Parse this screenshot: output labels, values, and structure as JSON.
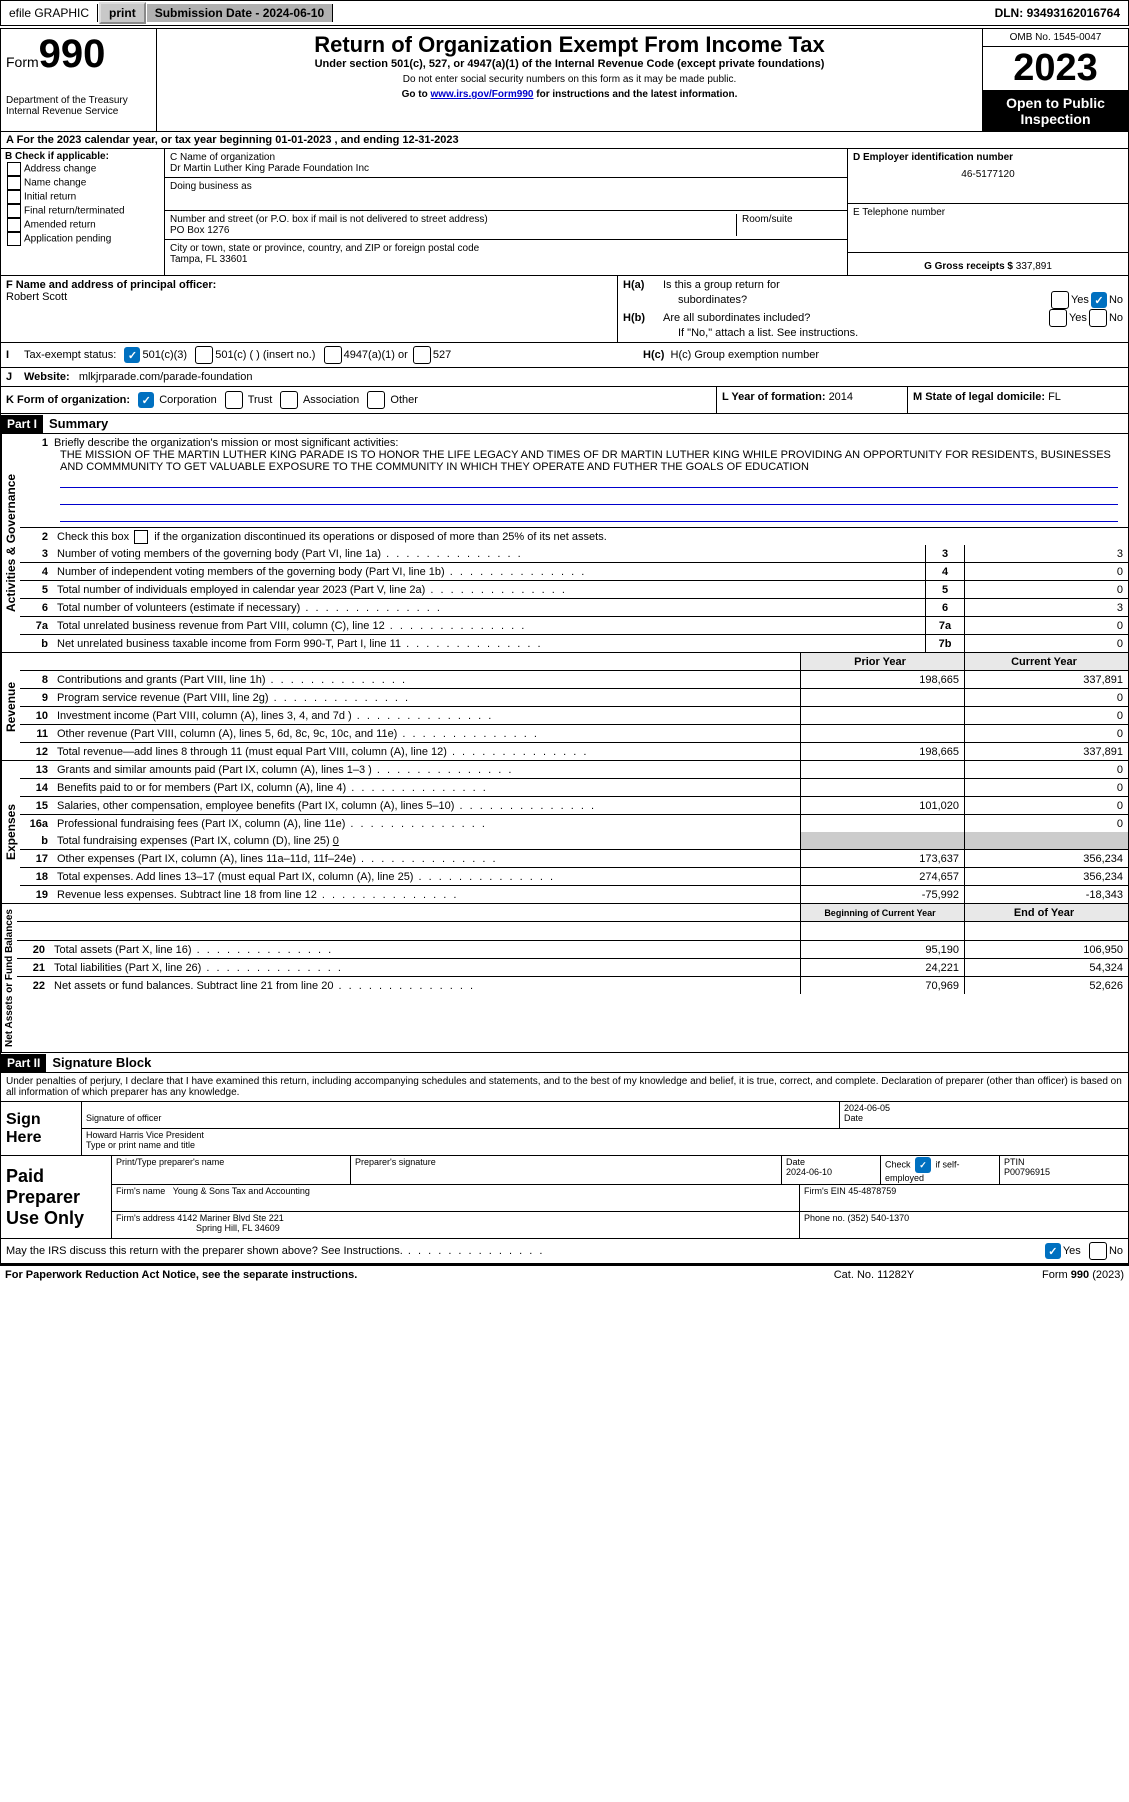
{
  "topbar": {
    "efile_label": "efile GRAPHIC",
    "print_btn": "print",
    "submission_label": "Submission Date - ",
    "submission_date": "2024-06-10",
    "dln_label": "DLN: ",
    "dln": "93493162016764"
  },
  "header": {
    "form_label": "Form",
    "form_number": "990",
    "dept": "Department of the Treasury",
    "irs": "Internal Revenue Service",
    "title": "Return of Organization Exempt From Income Tax",
    "sub1": "Under section 501(c), 527, or 4947(a)(1) of the Internal Revenue Code (except private foundations)",
    "sub2": "Do not enter social security numbers on this form as it may be made public.",
    "sub3_pre": "Go to ",
    "sub3_link": "www.irs.gov/Form990",
    "sub3_post": " for instructions and the latest information.",
    "omb_label": "OMB No. ",
    "omb": "1545-0047",
    "year": "2023",
    "open1": "Open to Public",
    "open2": "Inspection"
  },
  "row_a": {
    "text_pre": "A   For the 2023 calendar year, or tax year beginning ",
    "begin": "01-01-2023",
    "mid": "   , and ending ",
    "end": "12-31-2023"
  },
  "col_b": {
    "label": "B Check if applicable:",
    "items": [
      "Address change",
      "Name change",
      "Initial return",
      "Final return/terminated",
      "Amended return",
      "Application pending"
    ]
  },
  "col_c": {
    "name_label": "C Name of organization",
    "name": "Dr Martin Luther King Parade Foundation Inc",
    "dba_label": "Doing business as",
    "addr_label": "Number and street (or P.O. box if mail is not delivered to street address)",
    "addr": "PO Box 1276",
    "suite_label": "Room/suite",
    "city_label": "City or town, state or province, country, and ZIP or foreign postal code",
    "city": "Tampa, FL  33601"
  },
  "col_d": {
    "ein_label": "D Employer identification number",
    "ein": "46-5177120",
    "phone_label": "E Telephone number",
    "gross_label": "G Gross receipts $ ",
    "gross": "337,891"
  },
  "section_f": {
    "label": "F Name and address of principal officer:",
    "name": "Robert Scott"
  },
  "section_h": {
    "ha_label": "H(a)  Is this a group return for",
    "ha_label2": "subordinates?",
    "hb_label": "H(b)  Are all subordinates included?",
    "hb_note": "If \"No,\" attach a list. See instructions.",
    "hc_label": "H(c)  Group exemption number ",
    "yes": "Yes",
    "no": "No"
  },
  "section_i": {
    "label": "Tax-exempt status:",
    "opt1": "501(c)(3)",
    "opt2": "501(c) (  ) (insert no.)",
    "opt3": "4947(a)(1) or",
    "opt4": "527"
  },
  "section_j": {
    "label": "Website: ",
    "value": "mlkjrparade.com/parade-foundation"
  },
  "section_k": {
    "label": "K Form of organization:",
    "opts": [
      "Corporation",
      "Trust",
      "Association",
      "Other"
    ]
  },
  "section_l": {
    "label": "L Year of formation: ",
    "value": "2014"
  },
  "section_m": {
    "label": "M State of legal domicile: ",
    "value": "FL"
  },
  "parts": {
    "p1_label": "Part I",
    "p1_title": "Summary",
    "p2_label": "Part II",
    "p2_title": "Signature Block"
  },
  "vert_labels": {
    "gov": "Activities & Governance",
    "rev": "Revenue",
    "exp": "Expenses",
    "net": "Net Assets or Fund Balances"
  },
  "summary": {
    "q1_label": "Briefly describe the organization's mission or most significant activities:",
    "mission": "THE MISSION OF THE MARTIN LUTHER KING PARADE IS TO HONOR THE LIFE LEGACY AND TIMES OF DR MARTIN LUTHER KING WHILE PROVIDING AN OPPORTUNITY FOR RESIDENTS, BUSINESSES AND COMMMUNITY TO GET VALUABLE EXPOSURE TO THE COMMUNITY IN WHICH THEY OPERATE AND FUTHER THE GOALS OF EDUCATION",
    "q2_pre": "Check this box ",
    "q2_post": " if the organization discontinued its operations or disposed of more than 25% of its net assets.",
    "rows_gov": [
      {
        "n": "3",
        "t": "Number of voting members of the governing body (Part VI, line 1a)",
        "box": "3",
        "v": "3"
      },
      {
        "n": "4",
        "t": "Number of independent voting members of the governing body (Part VI, line 1b)",
        "box": "4",
        "v": "0"
      },
      {
        "n": "5",
        "t": "Total number of individuals employed in calendar year 2023 (Part V, line 2a)",
        "box": "5",
        "v": "0"
      },
      {
        "n": "6",
        "t": "Total number of volunteers (estimate if necessary)",
        "box": "6",
        "v": "3"
      },
      {
        "n": "7a",
        "t": "Total unrelated business revenue from Part VIII, column (C), line 12",
        "box": "7a",
        "v": "0"
      },
      {
        "n": "b",
        "t": "Net unrelated business taxable income from Form 990-T, Part I, line 11",
        "box": "7b",
        "v": "0"
      }
    ],
    "hdr_prior": "Prior Year",
    "hdr_curr": "Current Year",
    "rows_rev": [
      {
        "n": "8",
        "t": "Contributions and grants (Part VIII, line 1h)",
        "p": "198,665",
        "c": "337,891"
      },
      {
        "n": "9",
        "t": "Program service revenue (Part VIII, line 2g)",
        "p": "",
        "c": "0"
      },
      {
        "n": "10",
        "t": "Investment income (Part VIII, column (A), lines 3, 4, and 7d )",
        "p": "",
        "c": "0"
      },
      {
        "n": "11",
        "t": "Other revenue (Part VIII, column (A), lines 5, 6d, 8c, 9c, 10c, and 11e)",
        "p": "",
        "c": "0"
      },
      {
        "n": "12",
        "t": "Total revenue—add lines 8 through 11 (must equal Part VIII, column (A), line 12)",
        "p": "198,665",
        "c": "337,891"
      }
    ],
    "rows_exp": [
      {
        "n": "13",
        "t": "Grants and similar amounts paid (Part IX, column (A), lines 1–3 )",
        "p": "",
        "c": "0"
      },
      {
        "n": "14",
        "t": "Benefits paid to or for members (Part IX, column (A), line 4)",
        "p": "",
        "c": "0"
      },
      {
        "n": "15",
        "t": "Salaries, other compensation, employee benefits (Part IX, column (A), lines 5–10)",
        "p": "101,020",
        "c": "0"
      },
      {
        "n": "16a",
        "t": "Professional fundraising fees (Part IX, column (A), line 11e)",
        "p": "",
        "c": "0"
      }
    ],
    "row_16b_pre": "Total fundraising expenses (Part IX, column (D), line 25) ",
    "row_16b_val": "0",
    "rows_exp2": [
      {
        "n": "17",
        "t": "Other expenses (Part IX, column (A), lines 11a–11d, 11f–24e)",
        "p": "173,637",
        "c": "356,234"
      },
      {
        "n": "18",
        "t": "Total expenses. Add lines 13–17 (must equal Part IX, column (A), line 25)",
        "p": "274,657",
        "c": "356,234"
      },
      {
        "n": "19",
        "t": "Revenue less expenses. Subtract line 18 from line 12",
        "p": "-75,992",
        "c": "-18,343"
      }
    ],
    "hdr_begin": "Beginning of Current Year",
    "hdr_end": "End of Year",
    "rows_net": [
      {
        "n": "20",
        "t": "Total assets (Part X, line 16)",
        "p": "95,190",
        "c": "106,950"
      },
      {
        "n": "21",
        "t": "Total liabilities (Part X, line 26)",
        "p": "24,221",
        "c": "54,324"
      },
      {
        "n": "22",
        "t": "Net assets or fund balances. Subtract line 21 from line 20",
        "p": "70,969",
        "c": "52,626"
      }
    ]
  },
  "perjury": "Under penalties of perjury, I declare that I have examined this return, including accompanying schedules and statements, and to the best of my knowledge and belief, it is true, correct, and complete. Declaration of preparer (other than officer) is based on all information of which preparer has any knowledge.",
  "sign": {
    "label1": "Sign",
    "label2": "Here",
    "sig_officer": "Signature of officer",
    "date_label": "Date",
    "sig_date": "2024-06-05",
    "officer_name": "Howard Harris  Vice President",
    "type_label": "Type or print name and title"
  },
  "paid": {
    "label1": "Paid",
    "label2": "Preparer",
    "label3": "Use Only",
    "print_label": "Print/Type preparer's name",
    "sig_label": "Preparer's signature",
    "date_label": "Date",
    "date": "2024-06-10",
    "check_label": "Check",
    "check_if": "if self-employed",
    "ptin_label": "PTIN",
    "ptin": "P00796915",
    "firm_name_label": "Firm's name  ",
    "firm_name": "Young & Sons Tax and Accounting",
    "firm_ein_label": "Firm's EIN  ",
    "firm_ein": "45-4878759",
    "firm_addr_label": "Firm's address ",
    "firm_addr1": "4142 Mariner Blvd Ste 221",
    "firm_addr2": "Spring Hill, FL  34609",
    "phone_label": "Phone no. ",
    "phone": "(352) 540-1370"
  },
  "discuss": {
    "text": "May the IRS discuss this return with the preparer shown above? See Instructions.",
    "yes": "Yes",
    "no": "No"
  },
  "footer": {
    "left": "For Paperwork Reduction Act Notice, see the separate instructions.",
    "mid": "Cat. No. 11282Y",
    "right_pre": "Form ",
    "right_bold": "990",
    "right_post": " (2023)"
  }
}
